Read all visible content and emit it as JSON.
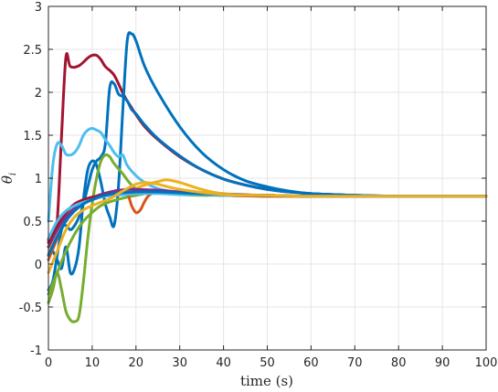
{
  "chart_data": {
    "type": "line",
    "title": "",
    "xlabel": "time (s)",
    "ylabel": "θ",
    "ylabel_subscript": "i",
    "xlim": [
      0,
      100
    ],
    "ylim": [
      -1,
      3
    ],
    "xticks": [
      "0",
      "10",
      "20",
      "30",
      "40",
      "50",
      "60",
      "70",
      "80",
      "90",
      "100"
    ],
    "yticks": [
      "-1",
      "-0.5",
      "0",
      "0.5",
      "1",
      "1.5",
      "2",
      "2.5",
      "3"
    ],
    "grid": true,
    "legend": "none",
    "series": [
      {
        "color": "#A2142F",
        "x": [
          0,
          1,
          2,
          3,
          4,
          5,
          7,
          9,
          10,
          11,
          12,
          13,
          15,
          17,
          18,
          19,
          20,
          22,
          25,
          30,
          35,
          40,
          45,
          50,
          55,
          60,
          70,
          80,
          90,
          100
        ],
        "y": [
          0.28,
          0.3,
          0.5,
          1.5,
          2.41,
          2.3,
          2.31,
          2.4,
          2.43,
          2.43,
          2.38,
          2.3,
          2.2,
          1.99,
          1.9,
          1.82,
          1.74,
          1.6,
          1.45,
          1.25,
          1.1,
          0.99,
          0.92,
          0.87,
          0.84,
          0.82,
          0.8,
          0.79,
          0.79,
          0.79
        ]
      },
      {
        "color": "#0072BD",
        "x": [
          0,
          1,
          2,
          3,
          4,
          5,
          6,
          7,
          8,
          9,
          10,
          11,
          12,
          13,
          14,
          15,
          16,
          17,
          18,
          19,
          20,
          22,
          25,
          30,
          35,
          40,
          45,
          50,
          55,
          60,
          70,
          80,
          90,
          100
        ],
        "y": [
          -0.3,
          -0.2,
          0.1,
          0.4,
          0.45,
          0.4,
          0.45,
          0.55,
          0.7,
          0.9,
          1.1,
          1.2,
          1.25,
          1.4,
          2.05,
          2.1,
          1.98,
          1.95,
          1.9,
          1.8,
          1.75,
          1.62,
          1.46,
          1.26,
          1.1,
          0.99,
          0.92,
          0.87,
          0.84,
          0.82,
          0.8,
          0.79,
          0.79,
          0.79
        ]
      },
      {
        "color": "#0072BD",
        "x": [
          0,
          1,
          2,
          3,
          4,
          5,
          6,
          7,
          8,
          9,
          10,
          11,
          12,
          13,
          14,
          15,
          16,
          17,
          18,
          19,
          20,
          22,
          25,
          30,
          35,
          40,
          45,
          50,
          55,
          60,
          70,
          80,
          90,
          100
        ],
        "y": [
          0.2,
          0.15,
          0.05,
          -0.05,
          0.2,
          -0.1,
          -0.05,
          0.2,
          0.75,
          1.1,
          1.2,
          1.15,
          0.95,
          0.7,
          0.55,
          0.45,
          0.9,
          1.8,
          2.6,
          2.68,
          2.6,
          2.3,
          2.0,
          1.6,
          1.3,
          1.1,
          0.97,
          0.9,
          0.85,
          0.82,
          0.8,
          0.79,
          0.79,
          0.79
        ]
      },
      {
        "color": "#4DBEEE",
        "x": [
          0,
          1,
          2,
          3,
          4,
          5,
          6,
          7,
          8,
          9,
          10,
          11,
          12,
          13,
          14,
          15,
          16,
          17,
          18,
          20,
          22,
          25,
          30,
          35,
          40,
          50,
          60,
          70,
          80,
          100
        ],
        "y": [
          0.5,
          1.15,
          1.4,
          1.38,
          1.28,
          1.27,
          1.3,
          1.38,
          1.5,
          1.56,
          1.58,
          1.56,
          1.53,
          1.45,
          1.38,
          1.3,
          1.25,
          1.27,
          1.15,
          1.03,
          0.95,
          0.88,
          0.83,
          0.81,
          0.8,
          0.79,
          0.79,
          0.79,
          0.79,
          0.79
        ]
      },
      {
        "color": "#77AC30",
        "x": [
          0,
          1,
          2,
          3,
          4,
          5,
          6,
          7,
          8,
          9,
          10,
          11,
          12,
          13,
          14,
          15,
          17,
          18,
          19,
          20,
          22,
          25,
          30,
          35,
          40,
          50,
          60,
          80,
          100
        ],
        "y": [
          -0.45,
          -0.3,
          -0.1,
          -0.3,
          -0.55,
          -0.65,
          -0.67,
          -0.6,
          -0.2,
          0.3,
          0.7,
          1.0,
          1.2,
          1.27,
          1.25,
          1.17,
          1.05,
          0.98,
          0.92,
          0.88,
          0.85,
          0.83,
          0.81,
          0.8,
          0.8,
          0.79,
          0.79,
          0.79,
          0.79
        ]
      },
      {
        "color": "#77AC30",
        "x": [
          0,
          2,
          4,
          6,
          8,
          10,
          12,
          15,
          20,
          25,
          30,
          40,
          50,
          60,
          80,
          100
        ],
        "y": [
          -0.35,
          -0.1,
          0.15,
          0.35,
          0.5,
          0.6,
          0.68,
          0.74,
          0.8,
          0.84,
          0.84,
          0.81,
          0.8,
          0.79,
          0.79,
          0.79
        ]
      },
      {
        "color": "#D95319",
        "x": [
          0,
          2,
          4,
          6,
          8,
          10,
          12,
          14,
          16,
          18,
          19,
          20,
          21,
          22,
          23,
          25,
          30,
          40,
          50,
          60,
          80,
          100
        ],
        "y": [
          0.05,
          0.3,
          0.55,
          0.68,
          0.72,
          0.75,
          0.78,
          0.82,
          0.86,
          0.82,
          0.68,
          0.6,
          0.63,
          0.73,
          0.8,
          0.84,
          0.83,
          0.8,
          0.79,
          0.79,
          0.79,
          0.79
        ]
      },
      {
        "color": "#EDB120",
        "x": [
          0,
          2,
          4,
          6,
          8,
          10,
          12,
          15,
          18,
          20,
          22,
          25,
          27,
          30,
          35,
          40,
          50,
          60,
          80,
          100
        ],
        "y": [
          0.12,
          0.38,
          0.55,
          0.66,
          0.72,
          0.76,
          0.79,
          0.81,
          0.84,
          0.88,
          0.92,
          0.96,
          0.98,
          0.95,
          0.87,
          0.82,
          0.8,
          0.79,
          0.79,
          0.79
        ]
      },
      {
        "color": "#7E2F8E",
        "x": [
          0,
          2,
          4,
          6,
          8,
          10,
          12,
          15,
          18,
          20,
          25,
          30,
          35,
          40,
          50,
          60,
          80,
          100
        ],
        "y": [
          0.2,
          0.4,
          0.55,
          0.65,
          0.72,
          0.77,
          0.81,
          0.85,
          0.87,
          0.87,
          0.86,
          0.84,
          0.82,
          0.81,
          0.8,
          0.79,
          0.79,
          0.79
        ]
      },
      {
        "color": "#A2142F",
        "x": [
          0,
          2,
          4,
          6,
          8,
          10,
          12,
          15,
          18,
          20,
          25,
          30,
          35,
          40,
          50,
          60,
          80,
          100
        ],
        "y": [
          0.25,
          0.45,
          0.6,
          0.7,
          0.75,
          0.78,
          0.8,
          0.82,
          0.83,
          0.84,
          0.84,
          0.83,
          0.82,
          0.81,
          0.8,
          0.79,
          0.79,
          0.79
        ]
      },
      {
        "color": "#4DBEEE",
        "x": [
          0,
          2,
          4,
          6,
          8,
          10,
          12,
          15,
          18,
          20,
          25,
          30,
          35,
          40,
          50,
          60,
          80,
          100
        ],
        "y": [
          0.3,
          0.5,
          0.62,
          0.68,
          0.72,
          0.75,
          0.78,
          0.8,
          0.81,
          0.82,
          0.82,
          0.81,
          0.81,
          0.8,
          0.8,
          0.79,
          0.79,
          0.79
        ]
      },
      {
        "color": "#0072BD",
        "x": [
          0,
          2,
          4,
          6,
          8,
          10,
          12,
          15,
          20,
          25,
          30,
          40,
          50,
          60,
          80,
          100
        ],
        "y": [
          0.1,
          0.32,
          0.5,
          0.62,
          0.7,
          0.75,
          0.79,
          0.82,
          0.84,
          0.84,
          0.83,
          0.81,
          0.8,
          0.79,
          0.79,
          0.79
        ]
      },
      {
        "color": "#EDB120",
        "x": [
          0,
          2,
          4,
          6,
          8,
          10,
          12,
          14,
          16,
          18,
          20,
          22,
          25,
          30,
          40,
          50,
          60,
          80,
          100
        ],
        "y": [
          -0.1,
          0.15,
          0.4,
          0.55,
          0.63,
          0.68,
          0.72,
          0.76,
          0.82,
          0.88,
          0.93,
          0.95,
          0.93,
          0.87,
          0.81,
          0.8,
          0.79,
          0.79,
          0.79
        ]
      }
    ]
  }
}
